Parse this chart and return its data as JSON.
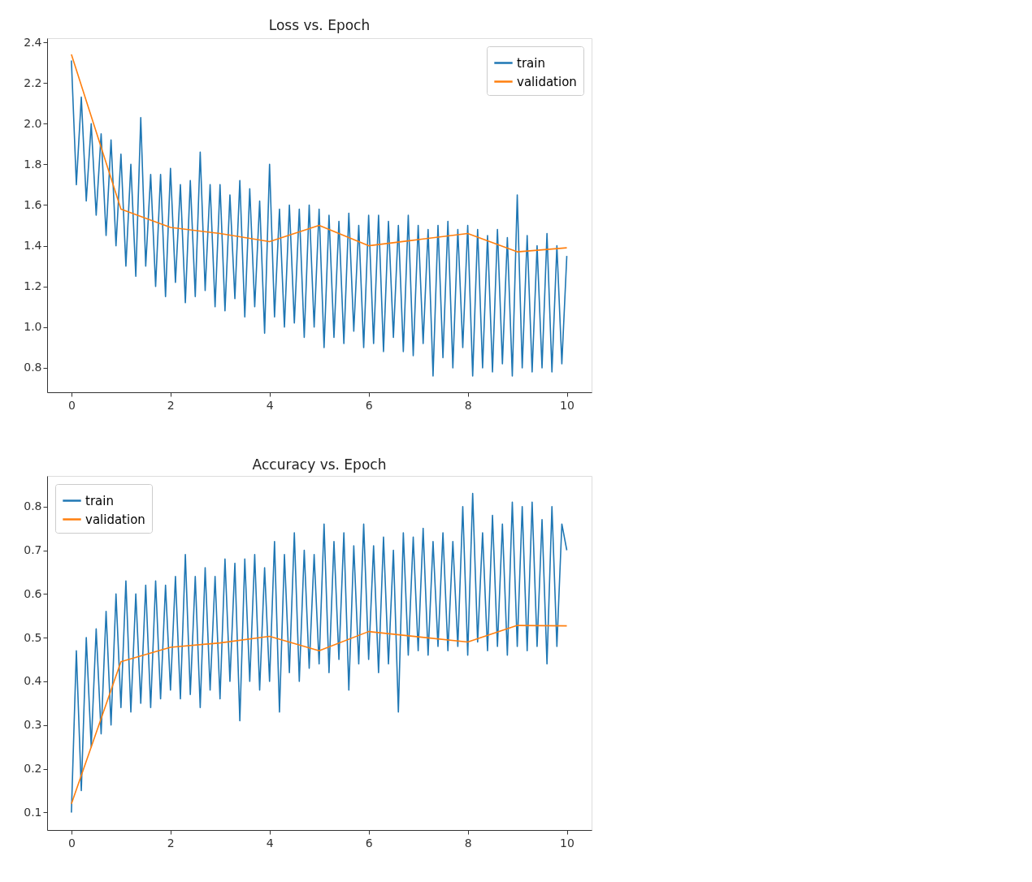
{
  "chart_data": [
    {
      "type": "line",
      "title": "Loss vs. Epoch",
      "xlim": [
        -0.49,
        10.5
      ],
      "xticks": [
        0,
        2,
        4,
        6,
        8,
        10
      ],
      "ylim": [
        0.68,
        2.42
      ],
      "yticks": [
        0.8,
        {
          "value": 1.0,
          "label": "1.0"
        },
        1.2,
        1.4,
        1.6,
        1.8,
        {
          "value": 2.0,
          "label": "2.0"
        },
        2.2,
        2.4
      ],
      "grid": false,
      "legend": "top right",
      "series": [
        {
          "name": "train",
          "color": "#1f77b4",
          "x": [
            0,
            0.1,
            0.2,
            0.3,
            0.4,
            0.5,
            0.6,
            0.7,
            0.8,
            0.9,
            1.0,
            1.1,
            1.2,
            1.3,
            1.4,
            1.5,
            1.6,
            1.7,
            1.8,
            1.9,
            2.0,
            2.1,
            2.2,
            2.3,
            2.4,
            2.5,
            2.6,
            2.7,
            2.8,
            2.9,
            3.0,
            3.1,
            3.2,
            3.3,
            3.4,
            3.5,
            3.6,
            3.7,
            3.8,
            3.9,
            4.0,
            4.1,
            4.2,
            4.3,
            4.4,
            4.5,
            4.6,
            4.7,
            4.8,
            4.9,
            5.0,
            5.1,
            5.2,
            5.3,
            5.4,
            5.5,
            5.6,
            5.7,
            5.8,
            5.9,
            6.0,
            6.1,
            6.2,
            6.3,
            6.4,
            6.5,
            6.6,
            6.7,
            6.8,
            6.9,
            7.0,
            7.1,
            7.2,
            7.3,
            7.4,
            7.5,
            7.6,
            7.7,
            7.8,
            7.9,
            8.0,
            8.1,
            8.2,
            8.3,
            8.4,
            8.5,
            8.6,
            8.7,
            8.8,
            8.9,
            9.0,
            9.1,
            9.2,
            9.3,
            9.4,
            9.5,
            9.6,
            9.7,
            9.8,
            9.9,
            10.0
          ],
          "values": [
            2.31,
            1.7,
            2.13,
            1.62,
            2.0,
            1.55,
            1.95,
            1.45,
            1.92,
            1.4,
            1.85,
            1.3,
            1.8,
            1.25,
            2.03,
            1.3,
            1.75,
            1.2,
            1.75,
            1.15,
            1.78,
            1.22,
            1.7,
            1.12,
            1.72,
            1.15,
            1.86,
            1.18,
            1.7,
            1.1,
            1.7,
            1.08,
            1.65,
            1.14,
            1.72,
            1.05,
            1.68,
            1.1,
            1.62,
            0.97,
            1.8,
            1.05,
            1.58,
            1.0,
            1.6,
            1.02,
            1.58,
            0.95,
            1.6,
            1.0,
            1.58,
            0.9,
            1.55,
            0.95,
            1.52,
            0.92,
            1.56,
            0.98,
            1.5,
            0.9,
            1.55,
            0.92,
            1.55,
            0.88,
            1.52,
            0.95,
            1.5,
            0.88,
            1.55,
            0.86,
            1.5,
            0.92,
            1.48,
            0.76,
            1.5,
            0.85,
            1.52,
            0.8,
            1.48,
            0.9,
            1.5,
            0.76,
            1.48,
            0.8,
            1.45,
            0.78,
            1.48,
            0.82,
            1.44,
            0.76,
            1.65,
            0.8,
            1.45,
            0.78,
            1.4,
            0.8,
            1.46,
            0.78,
            1.4,
            0.82,
            1.35
          ]
        },
        {
          "name": "validation",
          "color": "#ff7f0e",
          "x": [
            0,
            1,
            2,
            3,
            4,
            5,
            6,
            7,
            8,
            9,
            10
          ],
          "values": [
            2.34,
            1.58,
            1.49,
            1.46,
            1.42,
            1.5,
            1.4,
            1.43,
            1.46,
            1.37,
            1.39
          ]
        }
      ]
    },
    {
      "type": "line",
      "title": "Accuracy vs. Epoch",
      "xlim": [
        -0.49,
        10.5
      ],
      "xticks": [
        0,
        2,
        4,
        6,
        8,
        10
      ],
      "ylim": [
        0.06,
        0.87
      ],
      "yticks": [
        0.1,
        0.2,
        0.3,
        0.4,
        0.5,
        0.6,
        0.7,
        0.8
      ],
      "grid": false,
      "legend": "top left",
      "series": [
        {
          "name": "train",
          "color": "#1f77b4",
          "x": [
            0,
            0.1,
            0.2,
            0.3,
            0.4,
            0.5,
            0.6,
            0.7,
            0.8,
            0.9,
            1.0,
            1.1,
            1.2,
            1.3,
            1.4,
            1.5,
            1.6,
            1.7,
            1.8,
            1.9,
            2.0,
            2.1,
            2.2,
            2.3,
            2.4,
            2.5,
            2.6,
            2.7,
            2.8,
            2.9,
            3.0,
            3.1,
            3.2,
            3.3,
            3.4,
            3.5,
            3.6,
            3.7,
            3.8,
            3.9,
            4.0,
            4.1,
            4.2,
            4.3,
            4.4,
            4.5,
            4.6,
            4.7,
            4.8,
            4.9,
            5.0,
            5.1,
            5.2,
            5.3,
            5.4,
            5.5,
            5.6,
            5.7,
            5.8,
            5.9,
            6.0,
            6.1,
            6.2,
            6.3,
            6.4,
            6.5,
            6.6,
            6.7,
            6.8,
            6.9,
            7.0,
            7.1,
            7.2,
            7.3,
            7.4,
            7.5,
            7.6,
            7.7,
            7.8,
            7.9,
            8.0,
            8.1,
            8.2,
            8.3,
            8.4,
            8.5,
            8.6,
            8.7,
            8.8,
            8.9,
            9.0,
            9.1,
            9.2,
            9.3,
            9.4,
            9.5,
            9.6,
            9.7,
            9.8,
            9.9,
            10.0
          ],
          "values": [
            0.1,
            0.47,
            0.15,
            0.5,
            0.25,
            0.52,
            0.28,
            0.56,
            0.3,
            0.6,
            0.34,
            0.63,
            0.33,
            0.6,
            0.35,
            0.62,
            0.34,
            0.63,
            0.36,
            0.62,
            0.38,
            0.64,
            0.36,
            0.69,
            0.37,
            0.64,
            0.34,
            0.66,
            0.38,
            0.64,
            0.36,
            0.68,
            0.4,
            0.67,
            0.31,
            0.68,
            0.4,
            0.69,
            0.38,
            0.66,
            0.4,
            0.72,
            0.33,
            0.69,
            0.42,
            0.74,
            0.4,
            0.7,
            0.43,
            0.69,
            0.44,
            0.76,
            0.42,
            0.72,
            0.45,
            0.74,
            0.38,
            0.71,
            0.44,
            0.76,
            0.45,
            0.71,
            0.42,
            0.73,
            0.44,
            0.7,
            0.33,
            0.74,
            0.46,
            0.73,
            0.47,
            0.75,
            0.46,
            0.72,
            0.48,
            0.74,
            0.47,
            0.72,
            0.48,
            0.8,
            0.46,
            0.83,
            0.49,
            0.74,
            0.47,
            0.78,
            0.48,
            0.76,
            0.46,
            0.81,
            0.48,
            0.8,
            0.47,
            0.81,
            0.48,
            0.77,
            0.44,
            0.8,
            0.48,
            0.76,
            0.7
          ]
        },
        {
          "name": "validation",
          "color": "#ff7f0e",
          "x": [
            0,
            1,
            2,
            3,
            4,
            5,
            6,
            7,
            8,
            9,
            10
          ],
          "values": [
            0.12,
            0.445,
            0.478,
            0.488,
            0.503,
            0.47,
            0.514,
            0.502,
            0.49,
            0.528,
            0.527
          ]
        }
      ]
    }
  ]
}
